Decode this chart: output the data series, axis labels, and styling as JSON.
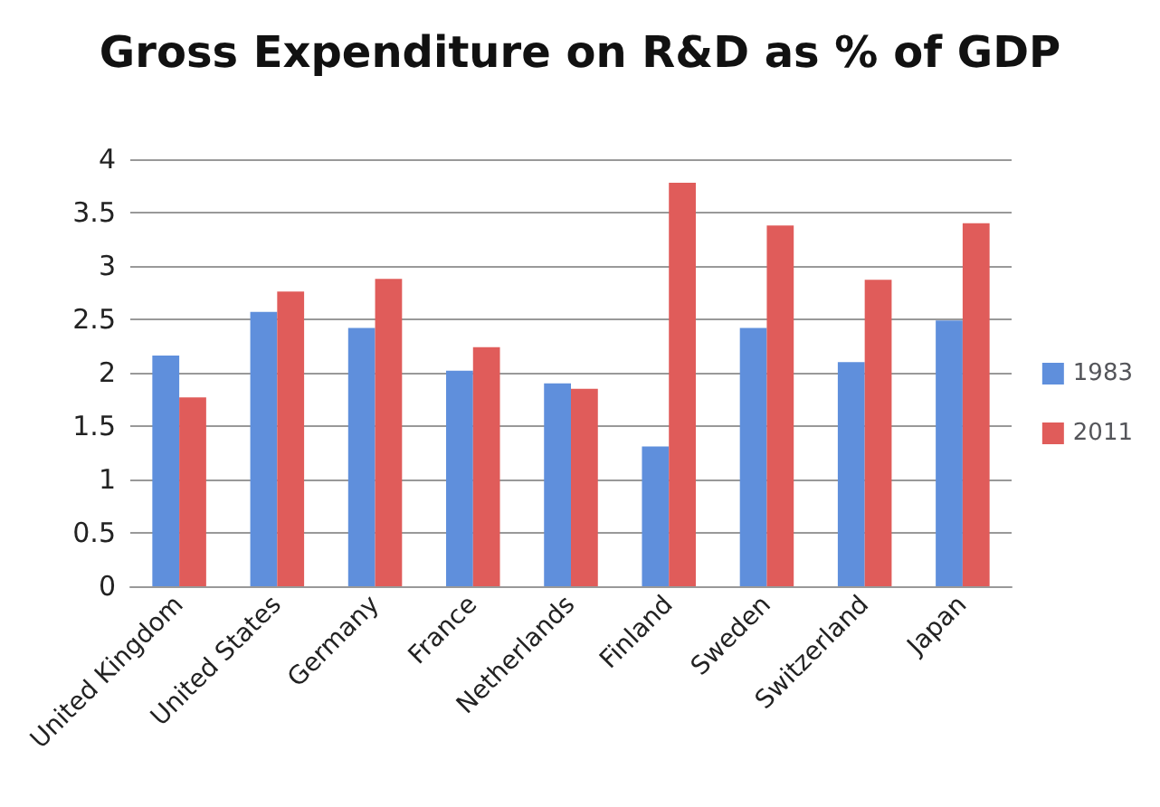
{
  "chart_data": {
    "type": "bar",
    "title": "Gross Expenditure on R&D as % of GDP",
    "categories": [
      "United Kingdom",
      "United States",
      "Germany",
      "France",
      "Netherlands",
      "Finland",
      "Sweden",
      "Switzerland",
      "Japan"
    ],
    "series": [
      {
        "name": "1983",
        "color": "#5f8fdc",
        "values": [
          2.16,
          2.57,
          2.42,
          2.02,
          1.9,
          1.31,
          2.42,
          2.1,
          2.49
        ]
      },
      {
        "name": "2011",
        "color": "#e05c5a",
        "values": [
          1.77,
          2.76,
          2.88,
          2.24,
          1.85,
          3.78,
          3.38,
          2.87,
          3.4
        ]
      }
    ],
    "ylim": [
      0,
      4
    ],
    "yticks": [
      0,
      0.5,
      1,
      1.5,
      2,
      2.5,
      3,
      3.5,
      4
    ],
    "grid": "y",
    "legend": "right"
  }
}
